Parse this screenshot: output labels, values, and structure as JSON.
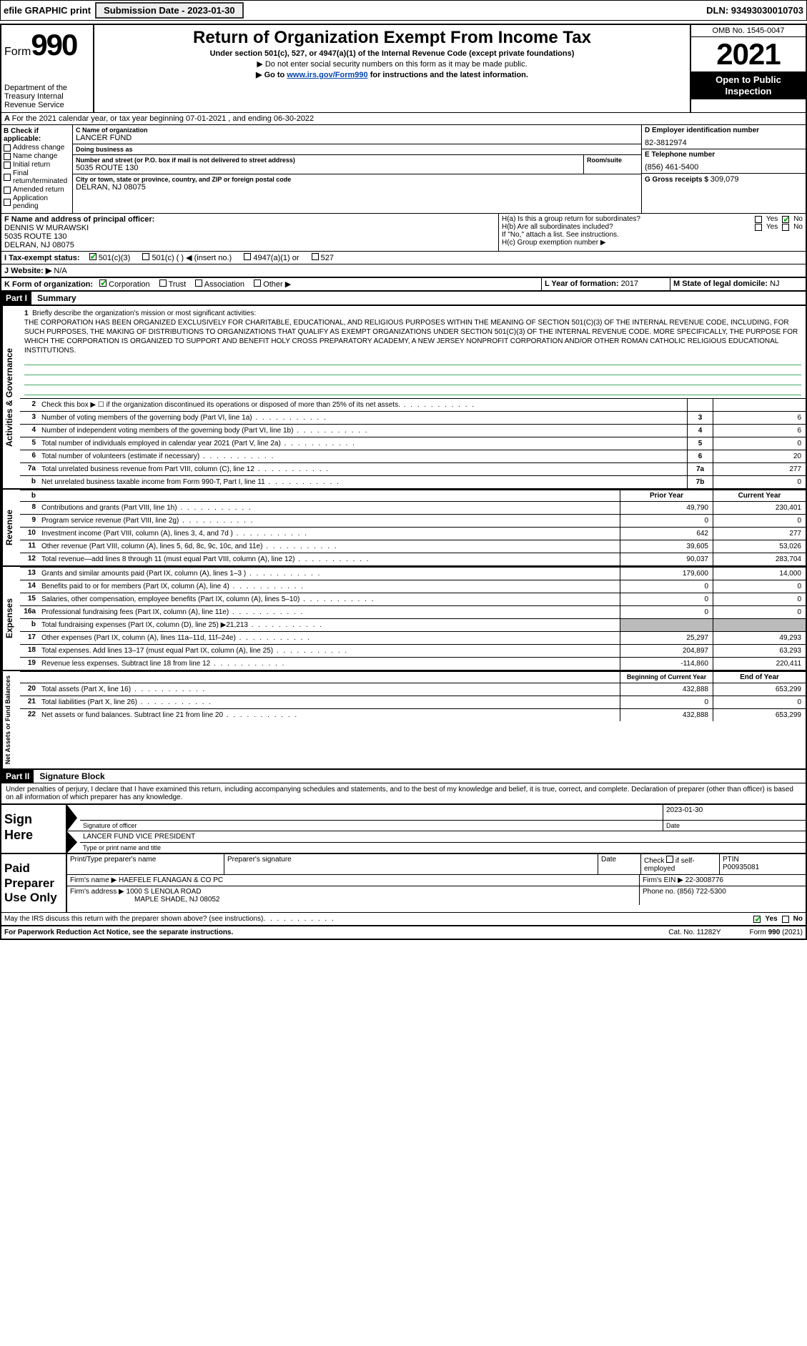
{
  "topbar": {
    "efile": "efile GRAPHIC print",
    "submission_label": "Submission Date - 2023-01-30",
    "dln": "DLN: 93493030010703"
  },
  "header": {
    "form_prefix": "Form",
    "form_no": "990",
    "dept": "Department of the Treasury\nInternal Revenue Service",
    "title": "Return of Organization Exempt From Income Tax",
    "sub1": "Under section 501(c), 527, or 4947(a)(1) of the Internal Revenue Code (except private foundations)",
    "sub2": "▶ Do not enter social security numbers on this form as it may be made public.",
    "sub3_pre": "▶ Go to ",
    "sub3_link": "www.irs.gov/Form990",
    "sub3_post": " for instructions and the latest information.",
    "omb": "OMB No. 1545-0047",
    "year": "2021",
    "openpub": "Open to Public Inspection"
  },
  "A": {
    "text": "For the 2021 calendar year, or tax year beginning 07-01-2021   , and ending 06-30-2022"
  },
  "B": {
    "hdr": "B Check if applicable:",
    "items": [
      {
        "label": "Address change",
        "checked": false
      },
      {
        "label": "Name change",
        "checked": false
      },
      {
        "label": "Initial return",
        "checked": false
      },
      {
        "label": "Final return/terminated",
        "checked": false
      },
      {
        "label": "Amended return",
        "checked": false
      },
      {
        "label": "Application pending",
        "checked": false
      }
    ]
  },
  "C": {
    "name_label": "C Name of organization",
    "name": "LANCER FUND",
    "dba_label": "Doing business as",
    "dba": "",
    "addr_label": "Number and street (or P.O. box if mail is not delivered to street address)",
    "room_label": "Room/suite",
    "addr": "5035 ROUTE 130",
    "city_label": "City or town, state or province, country, and ZIP or foreign postal code",
    "city": "DELRAN, NJ  08075"
  },
  "D": {
    "label": "D Employer identification number",
    "val": "82-3812974"
  },
  "E": {
    "label": "E Telephone number",
    "val": "(856) 461-5400"
  },
  "G": {
    "label": "G Gross receipts $",
    "val": "309,079"
  },
  "F": {
    "label": "F  Name and address of principal officer:",
    "name": "DENNIS W MURAWSKI",
    "addr1": "5035 ROUTE 130",
    "addr2": "DELRAN, NJ  08075"
  },
  "H": {
    "a": "H(a)  Is this a group return for subordinates?",
    "a_yes": "Yes",
    "a_no": "No",
    "b": "H(b)  Are all subordinates included?",
    "b_yes": "Yes",
    "b_no": "No",
    "note": "If \"No,\" attach a list. See instructions.",
    "c": "H(c)  Group exemption number ▶"
  },
  "I": {
    "label": "I   Tax-exempt status:",
    "opts": [
      "501(c)(3)",
      "501(c) (  ) ◀ (insert no.)",
      "4947(a)(1) or",
      "527"
    ]
  },
  "J": {
    "label": "J   Website: ▶",
    "val": "N/A"
  },
  "K": {
    "label": "K Form of organization:",
    "opts": [
      "Corporation",
      "Trust",
      "Association",
      "Other ▶"
    ]
  },
  "L": {
    "label": "L Year of formation:",
    "val": "2017"
  },
  "M": {
    "label": "M State of legal domicile:",
    "val": "NJ"
  },
  "partI": {
    "hdr": "Part I",
    "title": "Summary"
  },
  "mission": {
    "num": "1",
    "lead": "Briefly describe the organization's mission or most significant activities:",
    "text": "THE CORPORATION HAS BEEN ORGANIZED EXCLUSIVELY FOR CHARITABLE, EDUCATIONAL, AND RELIGIOUS PURPOSES WITHIN THE MEANING OF SECTION 501(C)(3) OF THE INTERNAL REVENUE CODE, INCLUDING, FOR SUCH PURPOSES, THE MAKING OF DISTRIBUTIONS TO ORGANIZATIONS THAT QUALIFY AS EXEMPT ORGANIZATIONS UNDER SECTION 501(C)(3) OF THE INTERNAL REVENUE CODE. MORE SPECIFICALLY, THE PURPOSE FOR WHICH THE CORPORATION IS ORGANIZED TO SUPPORT AND BENEFIT HOLY CROSS PREPARATORY ACADEMY, A NEW JERSEY NONPROFIT CORPORATION AND/OR OTHER ROMAN CATHOLIC RELIGIOUS EDUCATIONAL INSTITUTIONS."
  },
  "gov_lines": [
    {
      "n": "2",
      "t": "Check this box ▶ ☐ if the organization discontinued its operations or disposed of more than 25% of its net assets.",
      "box": "",
      "v": ""
    },
    {
      "n": "3",
      "t": "Number of voting members of the governing body (Part VI, line 1a)",
      "box": "3",
      "v": "6"
    },
    {
      "n": "4",
      "t": "Number of independent voting members of the governing body (Part VI, line 1b)",
      "box": "4",
      "v": "6"
    },
    {
      "n": "5",
      "t": "Total number of individuals employed in calendar year 2021 (Part V, line 2a)",
      "box": "5",
      "v": "0"
    },
    {
      "n": "6",
      "t": "Total number of volunteers (estimate if necessary)",
      "box": "6",
      "v": "20"
    },
    {
      "n": "7a",
      "t": "Total unrelated business revenue from Part VIII, column (C), line 12",
      "box": "7a",
      "v": "277"
    },
    {
      "n": "b",
      "t": "Net unrelated business taxable income from Form 990-T, Part I, line 11",
      "box": "7b",
      "v": "0"
    }
  ],
  "rev_hdr": {
    "prior": "Prior Year",
    "curr": "Current Year"
  },
  "rev_lines": [
    {
      "n": "8",
      "t": "Contributions and grants (Part VIII, line 1h)",
      "p": "49,790",
      "c": "230,401"
    },
    {
      "n": "9",
      "t": "Program service revenue (Part VIII, line 2g)",
      "p": "0",
      "c": "0"
    },
    {
      "n": "10",
      "t": "Investment income (Part VIII, column (A), lines 3, 4, and 7d )",
      "p": "642",
      "c": "277"
    },
    {
      "n": "11",
      "t": "Other revenue (Part VIII, column (A), lines 5, 6d, 8c, 9c, 10c, and 11e)",
      "p": "39,605",
      "c": "53,026"
    },
    {
      "n": "12",
      "t": "Total revenue—add lines 8 through 11 (must equal Part VIII, column (A), line 12)",
      "p": "90,037",
      "c": "283,704"
    }
  ],
  "exp_lines": [
    {
      "n": "13",
      "t": "Grants and similar amounts paid (Part IX, column (A), lines 1–3 )",
      "p": "179,600",
      "c": "14,000"
    },
    {
      "n": "14",
      "t": "Benefits paid to or for members (Part IX, column (A), line 4)",
      "p": "0",
      "c": "0"
    },
    {
      "n": "15",
      "t": "Salaries, other compensation, employee benefits (Part IX, column (A), lines 5–10)",
      "p": "0",
      "c": "0"
    },
    {
      "n": "16a",
      "t": "Professional fundraising fees (Part IX, column (A), line 11e)",
      "p": "0",
      "c": "0"
    },
    {
      "n": "b",
      "t": "Total fundraising expenses (Part IX, column (D), line 25) ▶21,213",
      "p": "GRAY",
      "c": "GRAY"
    },
    {
      "n": "17",
      "t": "Other expenses (Part IX, column (A), lines 11a–11d, 11f–24e)",
      "p": "25,297",
      "c": "49,293"
    },
    {
      "n": "18",
      "t": "Total expenses. Add lines 13–17 (must equal Part IX, column (A), line 25)",
      "p": "204,897",
      "c": "63,293"
    },
    {
      "n": "19",
      "t": "Revenue less expenses. Subtract line 18 from line 12",
      "p": "-114,860",
      "c": "220,411"
    }
  ],
  "na_hdr": {
    "beg": "Beginning of Current Year",
    "end": "End of Year"
  },
  "na_lines": [
    {
      "n": "20",
      "t": "Total assets (Part X, line 16)",
      "p": "432,888",
      "c": "653,299"
    },
    {
      "n": "21",
      "t": "Total liabilities (Part X, line 26)",
      "p": "0",
      "c": "0"
    },
    {
      "n": "22",
      "t": "Net assets or fund balances. Subtract line 21 from line 20",
      "p": "432,888",
      "c": "653,299"
    }
  ],
  "partII": {
    "hdr": "Part II",
    "title": "Signature Block"
  },
  "sig": {
    "perjury": "Under penalties of perjury, I declare that I have examined this return, including accompanying schedules and statements, and to the best of my knowledge and belief, it is true, correct, and complete. Declaration of preparer (other than officer) is based on all information of which preparer has any knowledge.",
    "sign_here": "Sign Here",
    "sig_officer": "Signature of officer",
    "date": "2023-01-30",
    "date_label": "Date",
    "name": "LANCER FUND  VICE PRESIDENT",
    "name_label": "Type or print name and title"
  },
  "prep": {
    "hdr": "Paid Preparer Use Only",
    "c1": "Print/Type preparer's name",
    "c2": "Preparer's signature",
    "c3": "Date",
    "c4a": "Check",
    "c4b": "if self-employed",
    "c5": "PTIN",
    "ptin": "P00935081",
    "firm_label": "Firm's name    ▶",
    "firm": "HAEFELE FLANAGAN & CO PC",
    "ein_label": "Firm's EIN ▶",
    "ein": "22-3008776",
    "addr_label": "Firm's address ▶",
    "addr1": "1000 S LENOLA ROAD",
    "addr2": "MAPLE SHADE, NJ  08052",
    "phone_label": "Phone no.",
    "phone": "(856) 722-5300"
  },
  "foot": {
    "discuss": "May the IRS discuss this return with the preparer shown above? (see instructions)",
    "yes": "Yes",
    "no": "No",
    "pra": "For Paperwork Reduction Act Notice, see the separate instructions.",
    "cat": "Cat. No. 11282Y",
    "form": "Form 990 (2021)"
  },
  "sides": {
    "gov": "Activities & Governance",
    "rev": "Revenue",
    "exp": "Expenses",
    "na": "Net Assets or Fund Balances"
  }
}
